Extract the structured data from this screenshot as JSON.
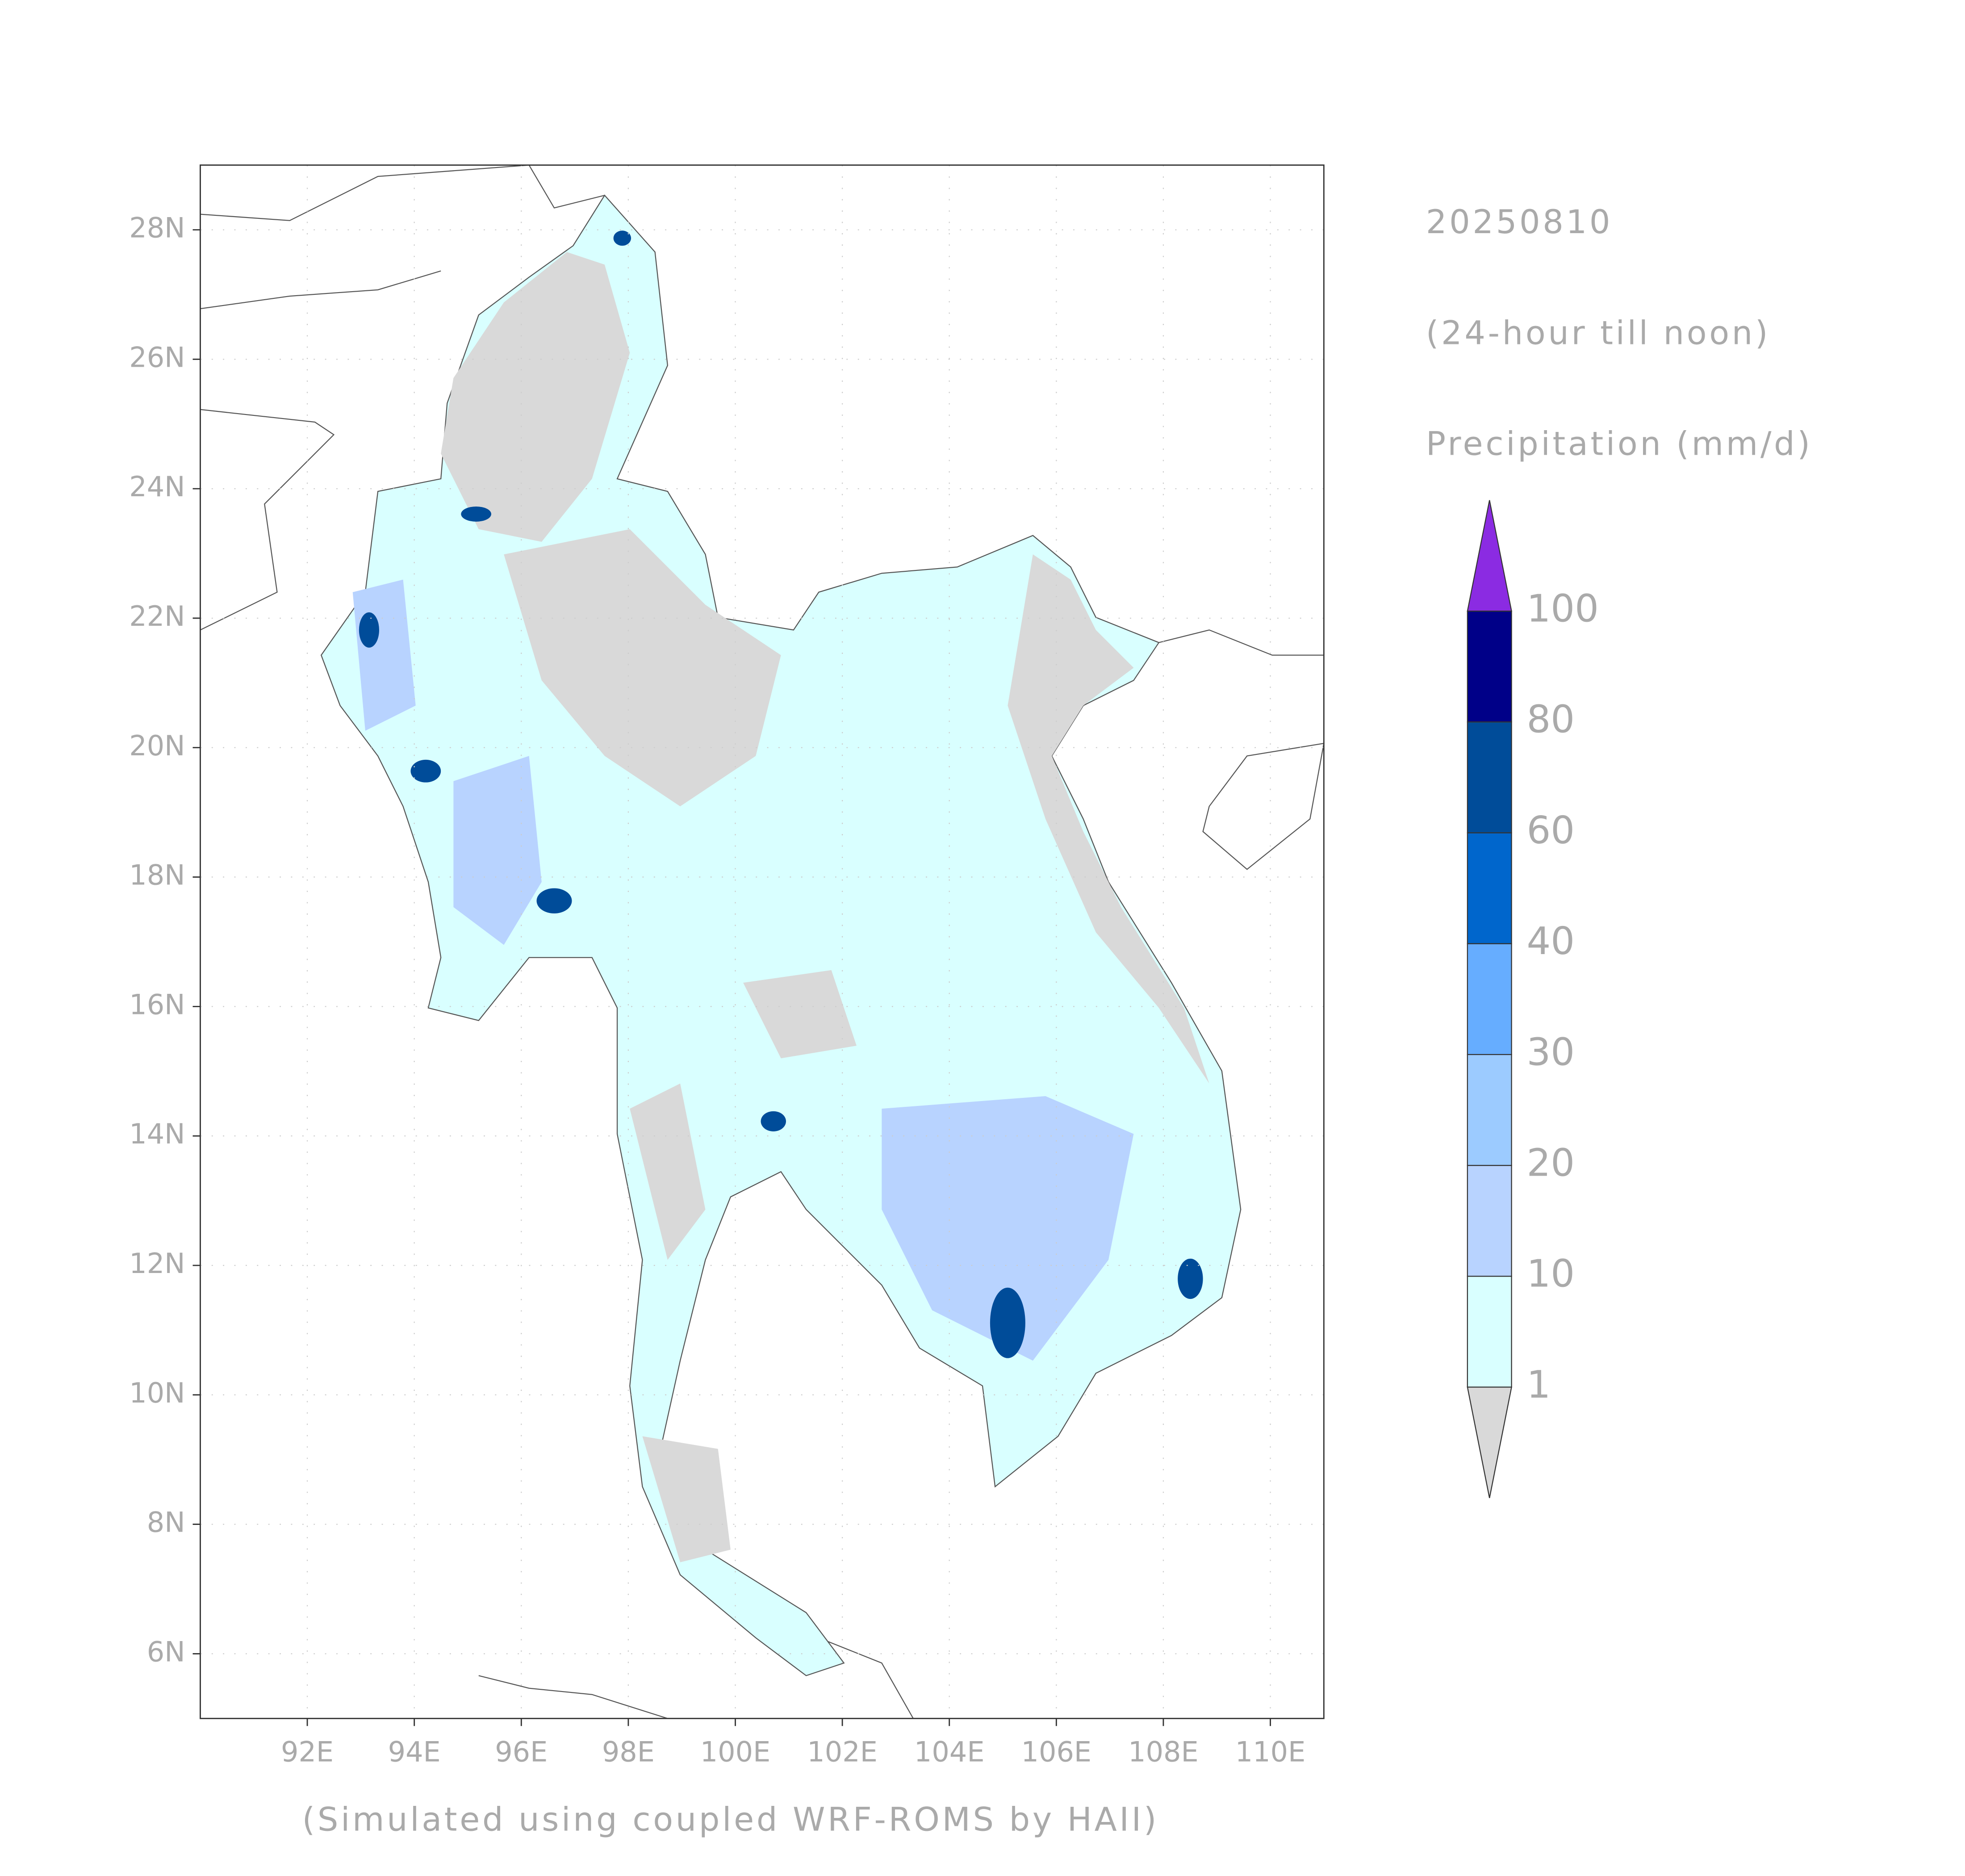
{
  "map": {
    "title": "20250810",
    "subtitle": "(24-hour till noon)",
    "variable": "Precipitation (mm/d)",
    "footnote": "(Simulated using coupled WRF-ROMS by HAII)",
    "xlim": [
      90,
      111
    ],
    "ylim": [
      5,
      29
    ],
    "xticks": [
      {
        "value": 92,
        "label": "92E"
      },
      {
        "value": 94,
        "label": "94E"
      },
      {
        "value": 96,
        "label": "96E"
      },
      {
        "value": 98,
        "label": "98E"
      },
      {
        "value": 100,
        "label": "100E"
      },
      {
        "value": 102,
        "label": "102E"
      },
      {
        "value": 104,
        "label": "104E"
      },
      {
        "value": 106,
        "label": "106E"
      },
      {
        "value": 108,
        "label": "108E"
      },
      {
        "value": 110,
        "label": "110E"
      }
    ],
    "yticks": [
      {
        "value": 6,
        "label": "6N"
      },
      {
        "value": 8,
        "label": "8N"
      },
      {
        "value": 10,
        "label": "10N"
      },
      {
        "value": 12,
        "label": "12N"
      },
      {
        "value": 14,
        "label": "14N"
      },
      {
        "value": 16,
        "label": "16N"
      },
      {
        "value": 18,
        "label": "18N"
      },
      {
        "value": 20,
        "label": "20N"
      },
      {
        "value": 22,
        "label": "22N"
      },
      {
        "value": 24,
        "label": "24N"
      },
      {
        "value": 26,
        "label": "26N"
      },
      {
        "value": 28,
        "label": "28N"
      }
    ],
    "grid": true,
    "colorbar": {
      "levels": [
        1,
        10,
        20,
        30,
        40,
        60,
        80,
        100
      ],
      "colors": [
        "#d9d9d9",
        "#d9ffff",
        "#b8d3ff",
        "#9ccbff",
        "#66adff",
        "#0066cc",
        "#004c99",
        "#000088",
        "#8b2be2"
      ]
    }
  }
}
